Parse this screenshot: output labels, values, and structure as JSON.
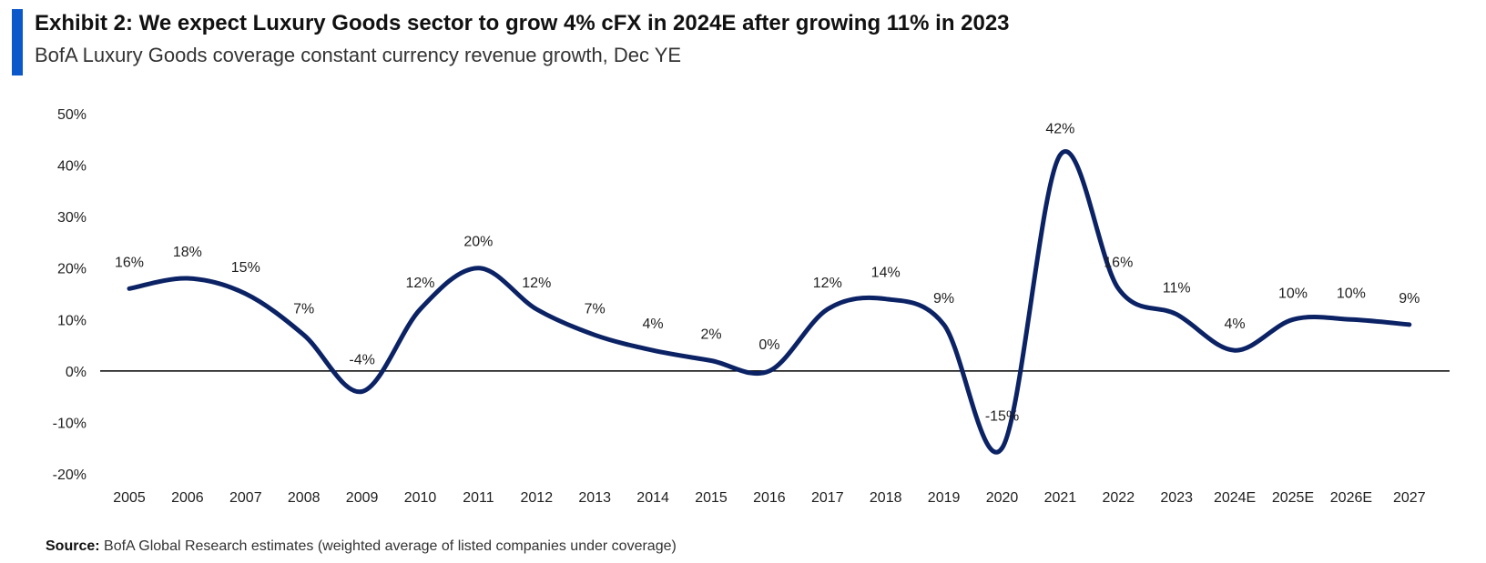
{
  "header": {
    "title": "Exhibit 2: We expect Luxury Goods sector to grow 4% cFX in 2024E after growing 11% in 2023",
    "subtitle": "BofA Luxury Goods coverage constant currency revenue growth, Dec YE"
  },
  "footer": {
    "source_label": "Source:",
    "source_text": "BofA Global Research estimates (weighted average of listed companies under coverage)"
  },
  "colors": {
    "accent": "#0a58ca",
    "line": "#0b2265",
    "axis": "#000000"
  },
  "chart_data": {
    "type": "line",
    "title": "Exhibit 2: We expect Luxury Goods sector to grow 4% cFX in 2024E after growing 11% in 2023",
    "subtitle": "BofA Luxury Goods coverage constant currency revenue growth, Dec YE",
    "xlabel": "",
    "ylabel": "",
    "categories": [
      "2005",
      "2006",
      "2007",
      "2008",
      "2009",
      "2010",
      "2011",
      "2012",
      "2013",
      "2014",
      "2015",
      "2016",
      "2017",
      "2018",
      "2019",
      "2020",
      "2021",
      "2022",
      "2023",
      "2024E",
      "2025E",
      "2026E",
      "2027"
    ],
    "series": [
      {
        "name": "Constant currency revenue growth",
        "values": [
          16,
          18,
          15,
          7,
          -4,
          12,
          20,
          12,
          7,
          4,
          2,
          0,
          12,
          14,
          9,
          -15,
          42,
          16,
          11,
          4,
          10,
          10,
          9
        ],
        "data_labels": [
          "16%",
          "18%",
          "15%",
          "7%",
          "-4%",
          "12%",
          "20%",
          "12%",
          "7%",
          "4%",
          "2%",
          "0%",
          "12%",
          "14%",
          "9%",
          "-15%",
          "42%",
          "16%",
          "11%",
          "4%",
          "10%",
          "10%",
          "9%"
        ]
      }
    ],
    "ylim": [
      -20,
      50
    ],
    "yticks": [
      -20,
      -10,
      0,
      10,
      20,
      30,
      40,
      50
    ],
    "ytick_labels": [
      "-20%",
      "-10%",
      "0%",
      "10%",
      "20%",
      "30%",
      "40%",
      "50%"
    ],
    "grid": false,
    "legend": "none",
    "smooth": true
  }
}
